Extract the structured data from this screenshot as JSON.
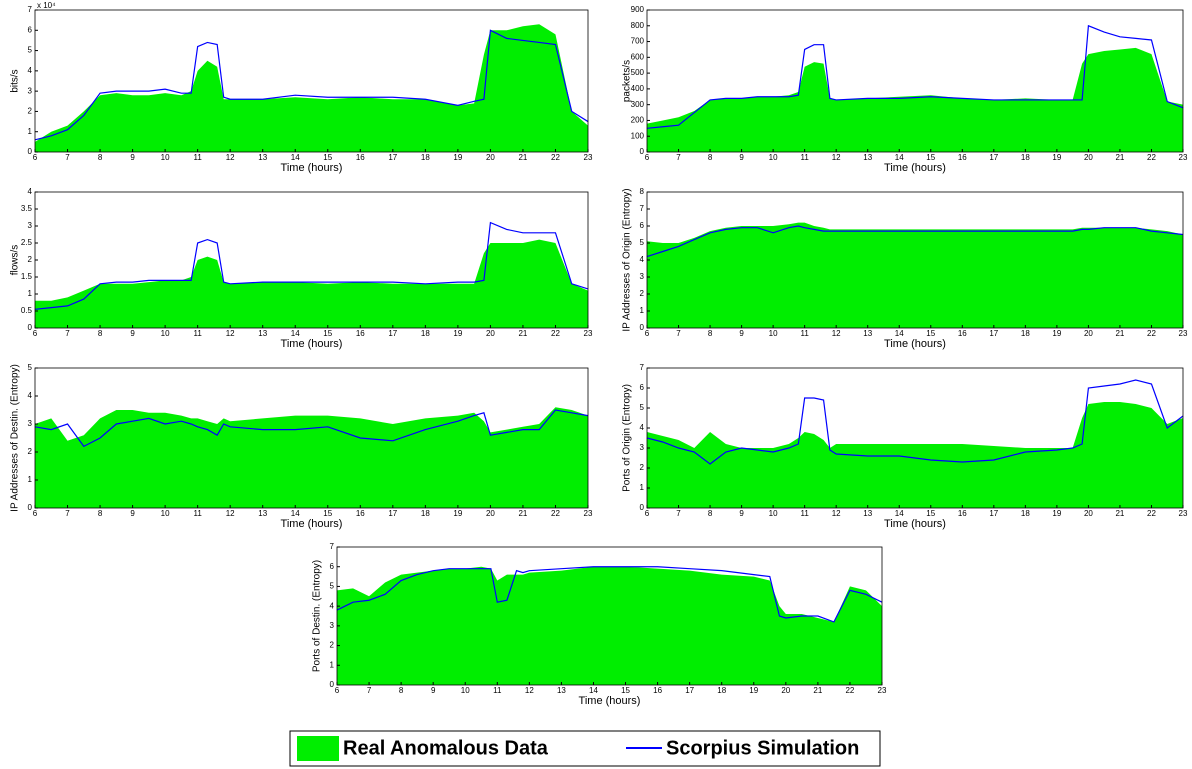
{
  "chart_data": [
    {
      "type": "line",
      "y_label": "bits/s",
      "x_label": "Time (hours)",
      "y_exponent_label": "x 10⁴",
      "x": [
        6,
        6.5,
        7,
        7.5,
        8,
        8.5,
        9,
        9.5,
        10,
        10.5,
        10.8,
        11,
        11.3,
        11.6,
        11.8,
        12,
        13,
        14,
        15,
        16,
        17,
        18,
        19,
        19.5,
        19.8,
        20,
        20.5,
        21,
        21.5,
        22,
        22.5,
        23
      ],
      "xlim": [
        6,
        23
      ],
      "xticks": [
        6,
        7,
        8,
        9,
        10,
        11,
        12,
        13,
        14,
        15,
        16,
        17,
        18,
        19,
        20,
        21,
        22,
        23
      ],
      "ylim": [
        0,
        7
      ],
      "yticks": [
        0,
        1,
        2,
        3,
        4,
        5,
        6,
        7
      ],
      "series": [
        {
          "color": "#00ee00",
          "fill": true,
          "values": [
            0.5,
            1.0,
            1.3,
            2.0,
            2.8,
            2.9,
            2.8,
            2.8,
            2.9,
            2.8,
            3.0,
            4.0,
            4.5,
            4.2,
            2.6,
            2.6,
            2.6,
            2.7,
            2.6,
            2.7,
            2.6,
            2.6,
            2.3,
            2.4,
            4.8,
            6.0,
            6.0,
            6.2,
            6.3,
            5.8,
            2.0,
            1.3
          ]
        },
        {
          "color": "#0000ff",
          "fill": false,
          "values": [
            0.6,
            0.8,
            1.1,
            1.8,
            2.9,
            3.0,
            3.0,
            3.0,
            3.1,
            2.9,
            2.9,
            5.2,
            5.4,
            5.3,
            2.7,
            2.6,
            2.6,
            2.8,
            2.7,
            2.7,
            2.7,
            2.6,
            2.3,
            2.5,
            2.6,
            6.0,
            5.6,
            5.5,
            5.4,
            5.3,
            2.0,
            1.5
          ]
        }
      ]
    },
    {
      "type": "line",
      "y_label": "packets/s",
      "x_label": "Time (hours)",
      "x": [
        6,
        6.5,
        7,
        7.5,
        8,
        8.5,
        9,
        9.5,
        10,
        10.5,
        10.8,
        11,
        11.3,
        11.6,
        11.8,
        12,
        13,
        14,
        15,
        16,
        17,
        18,
        19,
        19.5,
        19.8,
        20,
        20.5,
        21,
        21.5,
        22,
        22.5,
        23
      ],
      "xlim": [
        6,
        23
      ],
      "xticks": [
        6,
        7,
        8,
        9,
        10,
        11,
        12,
        13,
        14,
        15,
        16,
        17,
        18,
        19,
        20,
        21,
        22,
        23
      ],
      "ylim": [
        0,
        900
      ],
      "yticks": [
        0,
        100,
        200,
        300,
        400,
        500,
        600,
        700,
        800,
        900
      ],
      "series": [
        {
          "color": "#00ee00",
          "fill": true,
          "values": [
            180,
            200,
            220,
            260,
            330,
            340,
            340,
            350,
            350,
            360,
            380,
            540,
            570,
            560,
            340,
            330,
            340,
            350,
            360,
            340,
            330,
            340,
            330,
            330,
            560,
            620,
            640,
            650,
            660,
            620,
            320,
            300
          ]
        },
        {
          "color": "#0000ff",
          "fill": false,
          "values": [
            150,
            160,
            170,
            250,
            330,
            340,
            340,
            350,
            350,
            350,
            360,
            650,
            680,
            680,
            340,
            330,
            340,
            340,
            350,
            340,
            330,
            330,
            330,
            330,
            330,
            800,
            760,
            730,
            720,
            710,
            320,
            280
          ]
        }
      ]
    },
    {
      "type": "line",
      "y_label": "flows/s",
      "x_label": "Time (hours)",
      "x": [
        6,
        6.5,
        7,
        7.5,
        8,
        8.5,
        9,
        9.5,
        10,
        10.5,
        10.8,
        11,
        11.3,
        11.6,
        11.8,
        12,
        13,
        14,
        15,
        16,
        17,
        18,
        19,
        19.5,
        19.8,
        20,
        20.5,
        21,
        21.5,
        22,
        22.5,
        23
      ],
      "xlim": [
        6,
        23
      ],
      "xticks": [
        6,
        7,
        8,
        9,
        10,
        11,
        12,
        13,
        14,
        15,
        16,
        17,
        18,
        19,
        20,
        21,
        22,
        23
      ],
      "ylim": [
        0,
        4
      ],
      "yticks": [
        0,
        0.5,
        1,
        1.5,
        2,
        2.5,
        3,
        3.5,
        4
      ],
      "series": [
        {
          "color": "#00ee00",
          "fill": true,
          "values": [
            0.8,
            0.8,
            0.9,
            1.1,
            1.3,
            1.3,
            1.3,
            1.35,
            1.4,
            1.4,
            1.5,
            2.0,
            2.1,
            2.0,
            1.35,
            1.3,
            1.35,
            1.35,
            1.3,
            1.35,
            1.3,
            1.3,
            1.3,
            1.3,
            2.2,
            2.5,
            2.5,
            2.5,
            2.6,
            2.5,
            1.3,
            1.1
          ]
        },
        {
          "color": "#0000ff",
          "fill": false,
          "values": [
            0.55,
            0.6,
            0.65,
            0.85,
            1.3,
            1.35,
            1.35,
            1.4,
            1.4,
            1.4,
            1.4,
            2.5,
            2.6,
            2.5,
            1.35,
            1.3,
            1.35,
            1.35,
            1.35,
            1.35,
            1.35,
            1.3,
            1.35,
            1.35,
            1.4,
            3.1,
            2.9,
            2.8,
            2.8,
            2.8,
            1.3,
            1.15
          ]
        }
      ]
    },
    {
      "type": "line",
      "y_label": "IP Addresses of Origin (Entropy)",
      "x_label": "Time (hours)",
      "x": [
        6,
        6.5,
        7,
        7.5,
        8,
        8.5,
        9,
        9.5,
        10,
        10.5,
        10.8,
        11,
        11.3,
        11.6,
        11.8,
        12,
        13,
        14,
        15,
        16,
        17,
        18,
        19,
        19.5,
        19.8,
        20,
        20.5,
        21,
        21.5,
        22,
        22.5,
        23
      ],
      "xlim": [
        6,
        23
      ],
      "xticks": [
        6,
        7,
        8,
        9,
        10,
        11,
        12,
        13,
        14,
        15,
        16,
        17,
        18,
        19,
        20,
        21,
        22,
        23
      ],
      "ylim": [
        0,
        8
      ],
      "yticks": [
        0,
        1,
        2,
        3,
        4,
        5,
        6,
        7,
        8
      ],
      "series": [
        {
          "color": "#00ee00",
          "fill": true,
          "values": [
            5.1,
            5.0,
            5.0,
            5.3,
            5.7,
            5.9,
            6.0,
            6.0,
            6.0,
            6.1,
            6.2,
            6.2,
            6.0,
            5.9,
            5.8,
            5.8,
            5.8,
            5.8,
            5.8,
            5.8,
            5.8,
            5.8,
            5.8,
            5.8,
            5.9,
            5.9,
            5.9,
            5.9,
            5.9,
            5.8,
            5.7,
            5.5
          ]
        },
        {
          "color": "#0000ff",
          "fill": false,
          "values": [
            4.2,
            4.5,
            4.8,
            5.2,
            5.6,
            5.8,
            5.9,
            5.9,
            5.6,
            5.9,
            6.0,
            5.9,
            5.8,
            5.7,
            5.7,
            5.7,
            5.7,
            5.7,
            5.7,
            5.7,
            5.7,
            5.7,
            5.7,
            5.7,
            5.8,
            5.8,
            5.9,
            5.9,
            5.9,
            5.7,
            5.6,
            5.5
          ]
        }
      ]
    },
    {
      "type": "line",
      "y_label": "IP Addresses of Destin. (Entropy)",
      "x_label": "Time (hours)",
      "x": [
        6,
        6.5,
        7,
        7.5,
        8,
        8.5,
        9,
        9.5,
        10,
        10.5,
        10.8,
        11,
        11.3,
        11.6,
        11.8,
        12,
        13,
        14,
        15,
        16,
        17,
        18,
        19,
        19.5,
        19.8,
        20,
        20.5,
        21,
        21.5,
        22,
        22.5,
        23
      ],
      "xlim": [
        6,
        23
      ],
      "xticks": [
        6,
        7,
        8,
        9,
        10,
        11,
        12,
        13,
        14,
        15,
        16,
        17,
        18,
        19,
        20,
        21,
        22,
        23
      ],
      "ylim": [
        0,
        5
      ],
      "yticks": [
        0,
        1,
        2,
        3,
        4,
        5
      ],
      "series": [
        {
          "color": "#00ee00",
          "fill": true,
          "values": [
            3.0,
            3.2,
            2.4,
            2.6,
            3.2,
            3.5,
            3.5,
            3.4,
            3.4,
            3.3,
            3.2,
            3.2,
            3.1,
            3.0,
            3.2,
            3.1,
            3.2,
            3.3,
            3.3,
            3.2,
            3.0,
            3.2,
            3.3,
            3.4,
            3.1,
            2.7,
            2.8,
            2.9,
            3.0,
            3.6,
            3.5,
            3.3
          ]
        },
        {
          "color": "#0000ff",
          "fill": false,
          "values": [
            2.9,
            2.8,
            3.0,
            2.2,
            2.5,
            3.0,
            3.1,
            3.2,
            3.0,
            3.1,
            3.0,
            2.9,
            2.8,
            2.6,
            3.0,
            2.9,
            2.8,
            2.8,
            2.9,
            2.5,
            2.4,
            2.8,
            3.1,
            3.3,
            3.4,
            2.6,
            2.7,
            2.8,
            2.8,
            3.5,
            3.4,
            3.3
          ]
        }
      ]
    },
    {
      "type": "line",
      "y_label": "Ports of Origin (Entropy)",
      "x_label": "Time (hours)",
      "x": [
        6,
        6.5,
        7,
        7.5,
        8,
        8.5,
        9,
        9.5,
        10,
        10.5,
        10.8,
        11,
        11.3,
        11.6,
        11.8,
        12,
        13,
        14,
        15,
        16,
        17,
        18,
        19,
        19.5,
        19.8,
        20,
        20.5,
        21,
        21.5,
        22,
        22.5,
        23
      ],
      "xlim": [
        6,
        23
      ],
      "xticks": [
        6,
        7,
        8,
        9,
        10,
        11,
        12,
        13,
        14,
        15,
        16,
        17,
        18,
        19,
        20,
        21,
        22,
        23
      ],
      "ylim": [
        0,
        7
      ],
      "yticks": [
        0,
        1,
        2,
        3,
        4,
        5,
        6,
        7
      ],
      "series": [
        {
          "color": "#00ee00",
          "fill": true,
          "values": [
            3.8,
            3.6,
            3.4,
            3.0,
            3.8,
            3.2,
            3.0,
            3.0,
            3.0,
            3.2,
            3.5,
            3.8,
            3.7,
            3.4,
            3.0,
            3.2,
            3.2,
            3.2,
            3.2,
            3.2,
            3.1,
            3.0,
            3.0,
            3.0,
            4.5,
            5.2,
            5.3,
            5.3,
            5.2,
            5.0,
            4.2,
            4.5
          ]
        },
        {
          "color": "#0000ff",
          "fill": false,
          "values": [
            3.5,
            3.3,
            3.0,
            2.8,
            2.2,
            2.8,
            3.0,
            2.9,
            2.8,
            3.0,
            3.2,
            5.5,
            5.5,
            5.4,
            2.9,
            2.7,
            2.6,
            2.6,
            2.4,
            2.3,
            2.4,
            2.8,
            2.9,
            3.0,
            3.2,
            6.0,
            6.1,
            6.2,
            6.4,
            6.2,
            4.0,
            4.6
          ]
        }
      ]
    },
    {
      "type": "line",
      "y_label": "Ports of Destin. (Entropy)",
      "x_label": "Time (hours)",
      "x": [
        6,
        6.5,
        7,
        7.5,
        8,
        8.5,
        9,
        9.5,
        10,
        10.5,
        10.8,
        11,
        11.3,
        11.6,
        11.8,
        12,
        13,
        14,
        15,
        16,
        17,
        18,
        19,
        19.5,
        19.8,
        20,
        20.5,
        21,
        21.5,
        22,
        22.5,
        23
      ],
      "xlim": [
        6,
        23
      ],
      "xticks": [
        6,
        7,
        8,
        9,
        10,
        11,
        12,
        13,
        14,
        15,
        16,
        17,
        18,
        19,
        20,
        21,
        22,
        23
      ],
      "ylim": [
        0,
        7
      ],
      "yticks": [
        0,
        1,
        2,
        3,
        4,
        5,
        6,
        7
      ],
      "series": [
        {
          "color": "#00ee00",
          "fill": true,
          "values": [
            4.8,
            4.9,
            4.5,
            5.2,
            5.6,
            5.7,
            5.8,
            5.9,
            5.9,
            6.0,
            5.9,
            5.3,
            5.6,
            5.6,
            5.6,
            5.7,
            5.8,
            6.0,
            6.0,
            5.9,
            5.8,
            5.6,
            5.5,
            5.3,
            4.0,
            3.6,
            3.6,
            3.4,
            3.2,
            5.0,
            4.8,
            4.0
          ]
        },
        {
          "color": "#0000ff",
          "fill": false,
          "values": [
            3.8,
            4.2,
            4.3,
            4.6,
            5.3,
            5.6,
            5.8,
            5.9,
            5.9,
            5.9,
            5.9,
            4.2,
            4.3,
            5.8,
            5.7,
            5.8,
            5.9,
            6.0,
            6.0,
            6.0,
            5.9,
            5.8,
            5.6,
            5.5,
            3.5,
            3.4,
            3.5,
            3.5,
            3.2,
            4.8,
            4.6,
            4.2
          ]
        }
      ]
    }
  ],
  "legend": [
    {
      "name": "Real Anomalous Data",
      "color": "#00ee00",
      "fill": true
    },
    {
      "name": "Scorpius Simulation",
      "color": "#0000ff",
      "fill": false
    }
  ]
}
